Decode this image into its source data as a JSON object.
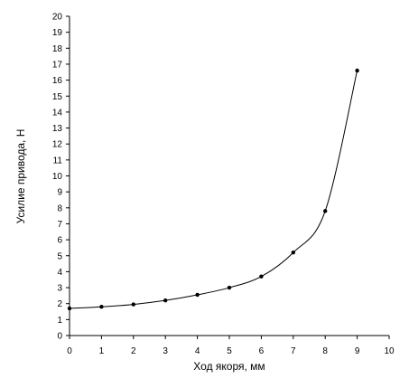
{
  "chart_data": {
    "type": "line",
    "title": "",
    "xlabel": "Ход якоря, мм",
    "ylabel": "Усилие привода, Н",
    "xlim": [
      0,
      10
    ],
    "ylim": [
      0,
      20
    ],
    "x_ticks": [
      "0",
      "1",
      "2",
      "3",
      "4",
      "5",
      "6",
      "7",
      "8",
      "9",
      "10"
    ],
    "y_ticks": [
      "0",
      "1",
      "2",
      "3",
      "4",
      "5",
      "6",
      "7",
      "8",
      "9",
      "10",
      "11",
      "12",
      "13",
      "14",
      "15",
      "16",
      "17",
      "18",
      "19",
      "20"
    ],
    "grid": false,
    "legend": "none",
    "series": [
      {
        "x": [
          0,
          1,
          2,
          3,
          4,
          5,
          6,
          7,
          8,
          9
        ],
        "y": [
          1.7,
          1.8,
          1.95,
          2.2,
          2.55,
          3.0,
          3.7,
          5.2,
          7.8,
          16.6
        ],
        "color": "#000000",
        "marker": "dot"
      }
    ]
  }
}
